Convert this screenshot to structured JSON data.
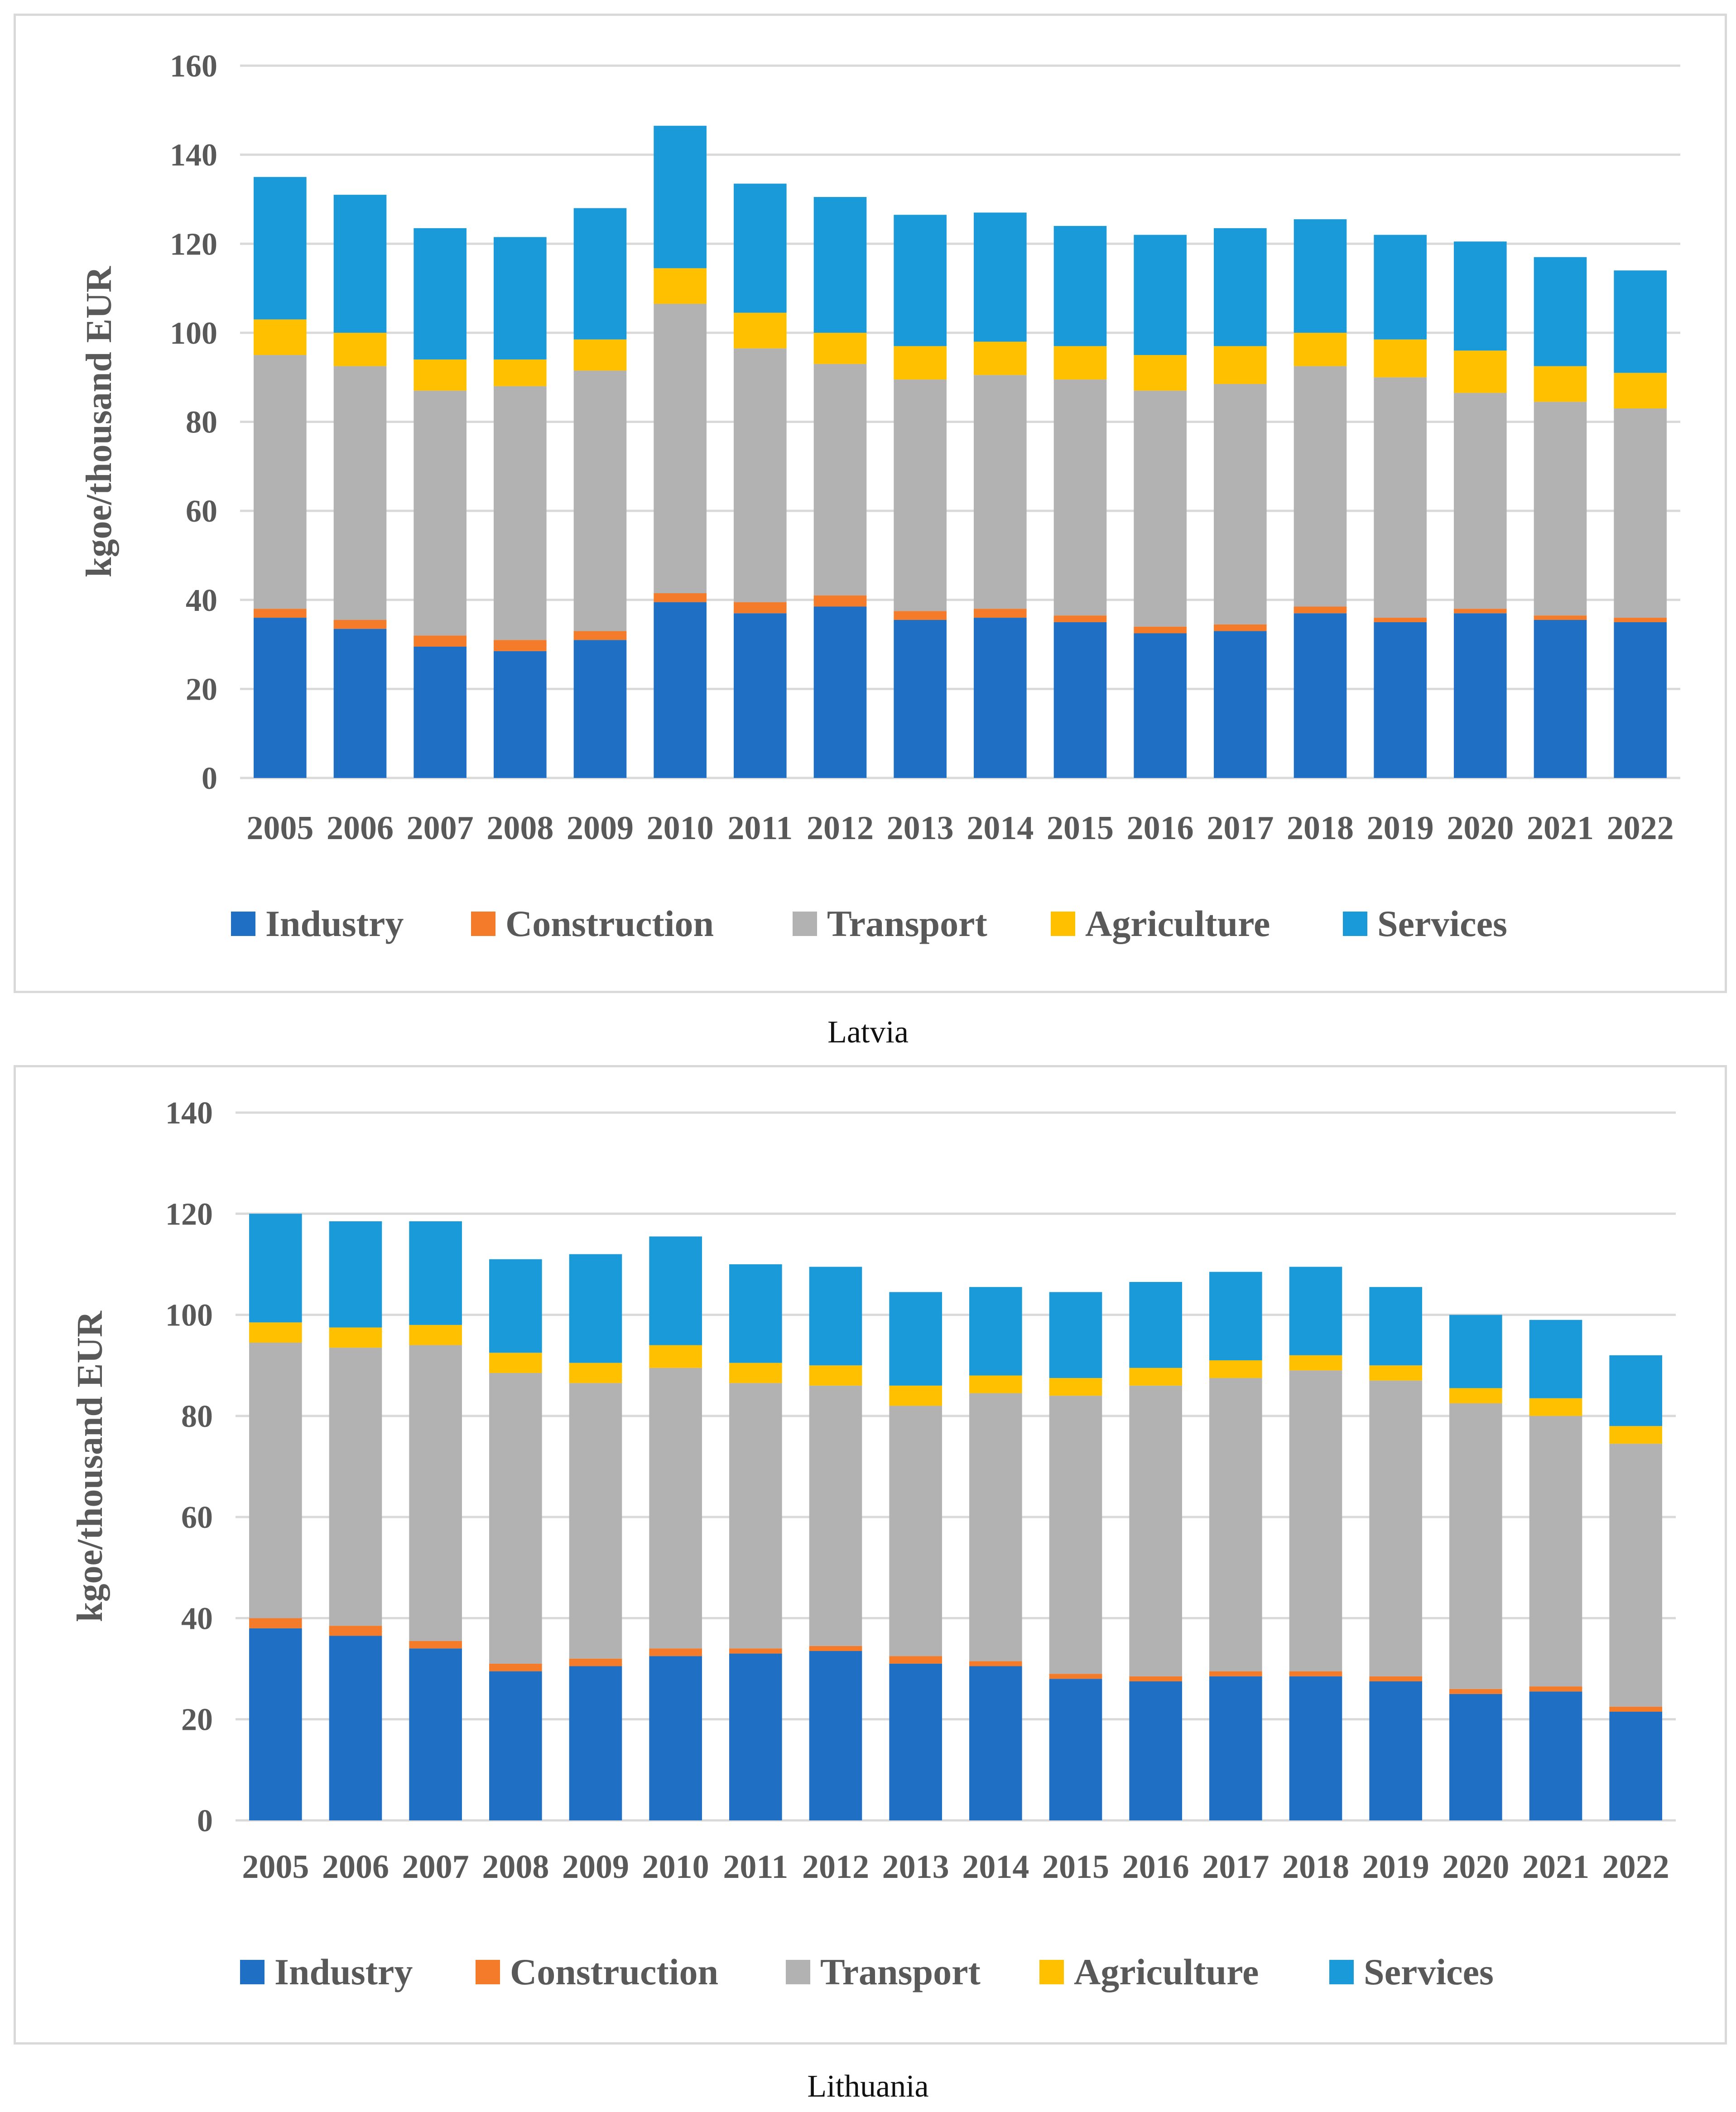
{
  "chart_data": [
    {
      "type": "bar",
      "stacked": true,
      "caption": "Latvia",
      "ylabel": "kgoe/thousand EUR",
      "ylim": [
        0,
        160
      ],
      "yticks": [
        "0",
        "20",
        "40",
        "60",
        "80",
        "100",
        "120",
        "140",
        "160"
      ],
      "categories": [
        "2005",
        "2006",
        "2007",
        "2008",
        "2009",
        "2010",
        "2011",
        "2012",
        "2013",
        "2014",
        "2015",
        "2016",
        "2017",
        "2018",
        "2019",
        "2020",
        "2021",
        "2022"
      ],
      "grid": true,
      "legend": "bottom",
      "series": [
        {
          "name": "Industry",
          "color": "#1f6fc5",
          "values": [
            36,
            33.5,
            29.5,
            28.5,
            31,
            39.5,
            37,
            38.5,
            35.5,
            36,
            35,
            32.5,
            33,
            37,
            35,
            37,
            35.5,
            35
          ]
        },
        {
          "name": "Construction",
          "color": "#f47b2a",
          "values": [
            2,
            2,
            2.5,
            2.5,
            2,
            2,
            2.5,
            2.5,
            2,
            2,
            1.5,
            1.5,
            1.5,
            1.5,
            1,
            1,
            1,
            1
          ]
        },
        {
          "name": "Transport",
          "color": "#b2b2b2",
          "values": [
            57,
            57,
            55,
            57,
            58.5,
            65,
            57,
            52,
            52,
            52.5,
            53,
            53,
            54,
            54,
            54,
            48.5,
            48,
            47
          ]
        },
        {
          "name": "Agriculture",
          "color": "#ffc000",
          "values": [
            8,
            7.5,
            7,
            6,
            7,
            8,
            8,
            7,
            7.5,
            7.5,
            7.5,
            8,
            8.5,
            7.5,
            8.5,
            9.5,
            8,
            8
          ]
        },
        {
          "name": "Services",
          "color": "#1a9ad8",
          "values": [
            32,
            31,
            29.5,
            27.5,
            29.5,
            32,
            29,
            30.5,
            29.5,
            29,
            27,
            27,
            26.5,
            25.5,
            23.5,
            24.5,
            24.5,
            23
          ]
        }
      ]
    },
    {
      "type": "bar",
      "stacked": true,
      "caption": "Lithuania",
      "ylabel": "kgoe/thousand EUR",
      "ylim": [
        0,
        140
      ],
      "yticks": [
        "0",
        "20",
        "40",
        "60",
        "80",
        "100",
        "120",
        "140"
      ],
      "categories": [
        "2005",
        "2006",
        "2007",
        "2008",
        "2009",
        "2010",
        "2011",
        "2012",
        "2013",
        "2014",
        "2015",
        "2016",
        "2017",
        "2018",
        "2019",
        "2020",
        "2021",
        "2022"
      ],
      "grid": true,
      "legend": "bottom",
      "series": [
        {
          "name": "Industry",
          "color": "#1f6fc5",
          "values": [
            38,
            36.5,
            34,
            29.5,
            30.5,
            32.5,
            33,
            33.5,
            31,
            30.5,
            28,
            27.5,
            28.5,
            28.5,
            27.5,
            25,
            25.5,
            21.5
          ]
        },
        {
          "name": "Construction",
          "color": "#f47b2a",
          "values": [
            2,
            2,
            1.5,
            1.5,
            1.5,
            1.5,
            1,
            1,
            1.5,
            1,
            1,
            1,
            1,
            1,
            1,
            1,
            1,
            1
          ]
        },
        {
          "name": "Transport",
          "color": "#b2b2b2",
          "values": [
            54.5,
            55,
            58.5,
            57.5,
            54.5,
            55.5,
            52.5,
            51.5,
            49.5,
            53,
            55,
            57.5,
            58,
            59.5,
            58.5,
            56.5,
            53.5,
            52
          ]
        },
        {
          "name": "Agriculture",
          "color": "#ffc000",
          "values": [
            4,
            4,
            4,
            4,
            4,
            4.5,
            4,
            4,
            4,
            3.5,
            3.5,
            3.5,
            3.5,
            3,
            3,
            3,
            3.5,
            3.5
          ]
        },
        {
          "name": "Services",
          "color": "#1a9ad8",
          "values": [
            21.5,
            21,
            20.5,
            18.5,
            21.5,
            21.5,
            19.5,
            19.5,
            18.5,
            17.5,
            17,
            17,
            17.5,
            17.5,
            15.5,
            14.5,
            15.5,
            14
          ]
        }
      ]
    }
  ]
}
